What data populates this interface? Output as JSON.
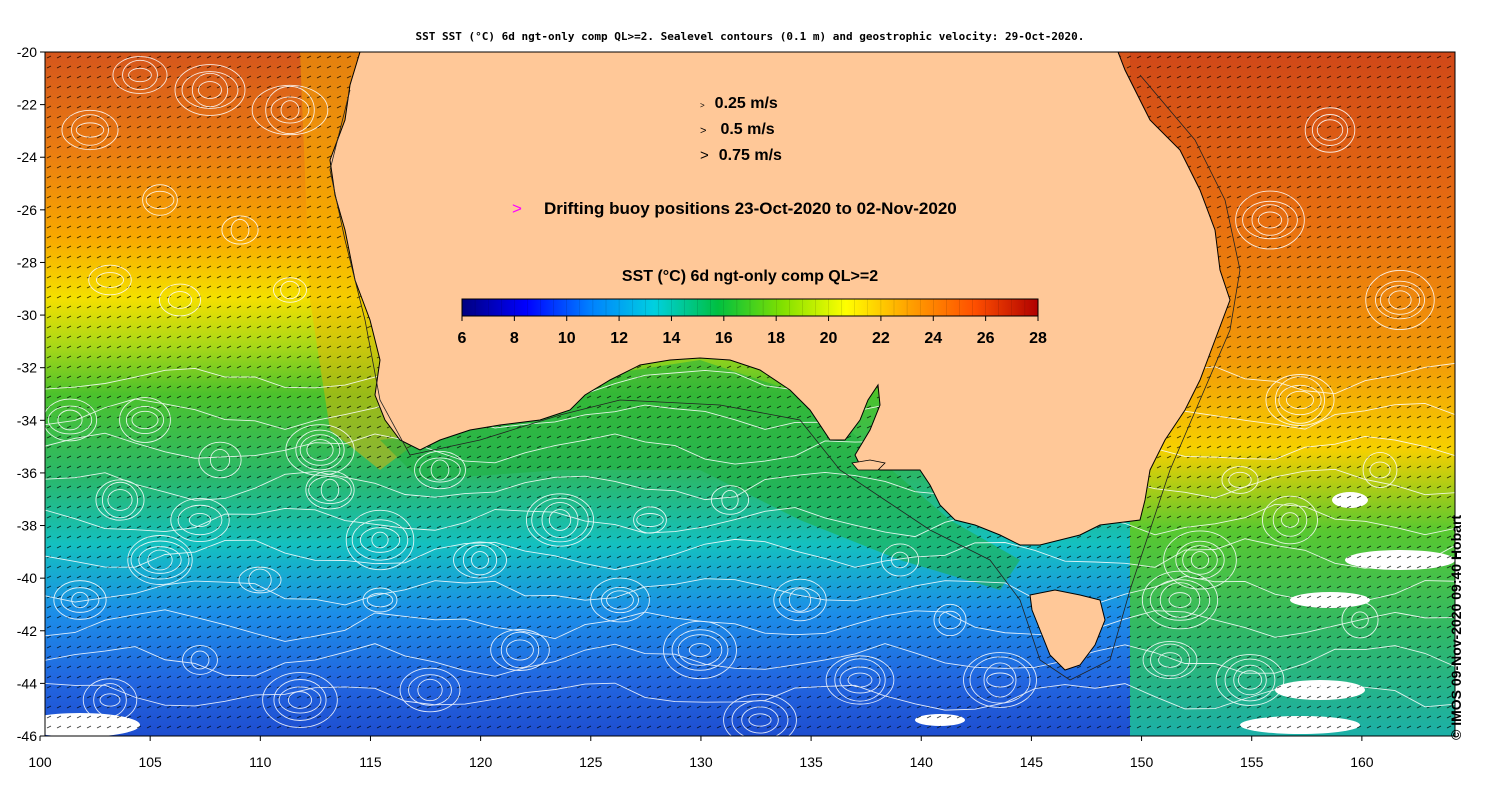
{
  "title": "SST SST (°C) 6d ngt-only comp QL>=2. Sealevel contours (0.1 m) and geostrophic velocity: 29-Oct-2020.",
  "credit": "© IMOS 09-Nov-2020 09:40 Hobart",
  "velocity_legend": [
    {
      "label": "0.25 m/s",
      "scale": 0.25
    },
    {
      "label": "0.5 m/s",
      "scale": 0.5
    },
    {
      "label": "0.75 m/s",
      "scale": 0.75
    }
  ],
  "buoy_legend": {
    "label": "Drifting buoy positions 23-Oct-2020 to 02-Nov-2020",
    "color": "#ff00ff"
  },
  "colorbar": {
    "title": "SST (°C) 6d ngt-only comp QL>=2",
    "min": 6,
    "max": 28,
    "ticks": [
      6,
      8,
      10,
      12,
      14,
      16,
      18,
      20,
      22,
      24,
      26,
      28
    ],
    "stops": [
      "#00007f",
      "#0000ff",
      "#0080ff",
      "#00d0e0",
      "#00c040",
      "#80e000",
      "#ffff00",
      "#ffa000",
      "#ff5000",
      "#b00000"
    ]
  },
  "axes": {
    "x_ticks": [
      100,
      105,
      110,
      115,
      120,
      125,
      130,
      135,
      140,
      145,
      150,
      155,
      160
    ],
    "y_ticks": [
      -20,
      -22,
      -24,
      -26,
      -28,
      -30,
      -32,
      -34,
      -36,
      -38,
      -40,
      -42,
      -44,
      -46
    ],
    "lon_range": [
      100,
      164
    ],
    "lat_range": [
      -46,
      -20
    ]
  },
  "colors": {
    "land": "#ffc898",
    "clouds": "#ffffff",
    "contour": "#ffffff",
    "vector": "#000000"
  }
}
